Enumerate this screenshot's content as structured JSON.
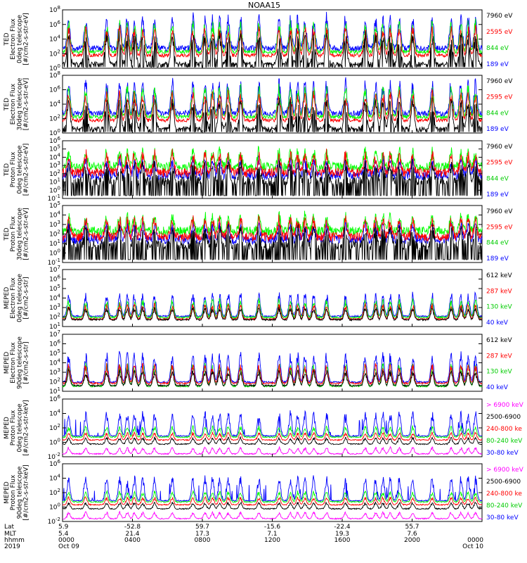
{
  "chart_data": {
    "type": "line",
    "title": "NOAA15",
    "panels": [
      {
        "ylabel": [
          "TED",
          "Electron Flux",
          "0deg telescope",
          "[#/cm2-s-str-eV]"
        ],
        "yticks": [
          "10^0",
          "10^2",
          "10^4",
          "10^6",
          "10^8"
        ],
        "ylim": [
          1,
          100000000
        ],
        "yscale": "log",
        "variant": "ted_e",
        "series": [
          {
            "name": "7960 eV",
            "color": "#000000"
          },
          {
            "name": "2595 eV",
            "color": "#ff0000"
          },
          {
            "name": "844 eV",
            "color": "#00ff00"
          },
          {
            "name": "189 eV",
            "color": "#0000ff"
          }
        ]
      },
      {
        "ylabel": [
          "TED",
          "Electron Flux",
          "30deg telescope",
          "[#/cm2-s-str-eV]"
        ],
        "yticks": [
          "10^0",
          "10^2",
          "10^4",
          "10^6",
          "10^8"
        ],
        "ylim": [
          1,
          100000000
        ],
        "yscale": "log",
        "variant": "ted_e",
        "series": [
          {
            "name": "7960 eV",
            "color": "#000000"
          },
          {
            "name": "2595 eV",
            "color": "#ff0000"
          },
          {
            "name": "844 eV",
            "color": "#00ff00"
          },
          {
            "name": "189 eV",
            "color": "#0000ff"
          }
        ]
      },
      {
        "ylabel": [
          "TED",
          "Proton Flux",
          "0deg telescope",
          "[#/cm2-s-str-eV]"
        ],
        "yticks": [
          "10^-1",
          "10^0",
          "10^1",
          "10^2",
          "10^3",
          "10^4",
          "10^5",
          "10^6"
        ],
        "ylim": [
          0.1,
          1000000
        ],
        "yscale": "log",
        "variant": "ted_p",
        "series": [
          {
            "name": "7960 eV",
            "color": "#000000"
          },
          {
            "name": "2595 eV",
            "color": "#ff0000"
          },
          {
            "name": "844 eV",
            "color": "#00ff00"
          },
          {
            "name": "189 eV",
            "color": "#0000ff"
          }
        ]
      },
      {
        "ylabel": [
          "TED",
          "Proton Flux",
          "30deg telescope",
          "[#/cm2-s-str-eV]"
        ],
        "yticks": [
          "10^-1",
          "10^0",
          "10^1",
          "10^2",
          "10^3",
          "10^4",
          "10^5"
        ],
        "ylim": [
          0.1,
          100000
        ],
        "yscale": "log",
        "variant": "ted_p",
        "series": [
          {
            "name": "7960 eV",
            "color": "#000000"
          },
          {
            "name": "2595 eV",
            "color": "#ff0000"
          },
          {
            "name": "844 eV",
            "color": "#00ff00"
          },
          {
            "name": "189 eV",
            "color": "#0000ff"
          }
        ]
      },
      {
        "ylabel": [
          "MEPED",
          "Electron Flux",
          "0deg telescope",
          "[#/cm2-s-str]"
        ],
        "yticks": [
          "10^1",
          "10^2",
          "10^3",
          "10^4",
          "10^5",
          "10^6",
          "10^7"
        ],
        "ylim": [
          10,
          10000000
        ],
        "yscale": "log",
        "variant": "mep_e",
        "series": [
          {
            "name": "612 keV",
            "color": "#000000"
          },
          {
            "name": "287 keV",
            "color": "#ff0000"
          },
          {
            "name": "130 keV",
            "color": "#00ff00"
          },
          {
            "name": "40 keV",
            "color": "#0000ff"
          }
        ]
      },
      {
        "ylabel": [
          "MEPED",
          "Electron Flux",
          "90deg telescope",
          "[#/cm2-s-str]"
        ],
        "yticks": [
          "10^1",
          "10^2",
          "10^3",
          "10^4",
          "10^5",
          "10^6",
          "10^7"
        ],
        "ylim": [
          10,
          10000000
        ],
        "yscale": "log",
        "variant": "mep_e90",
        "series": [
          {
            "name": "612 keV",
            "color": "#000000"
          },
          {
            "name": "287 keV",
            "color": "#ff0000"
          },
          {
            "name": "130 keV",
            "color": "#00ff00"
          },
          {
            "name": "40 keV",
            "color": "#0000ff"
          }
        ]
      },
      {
        "ylabel": [
          "MEPED",
          "Proton Flux",
          "0deg telescope",
          "[#/cm2-s-str-keV]"
        ],
        "yticks": [
          "10^-2",
          "10^0",
          "10^2",
          "10^4",
          "10^6"
        ],
        "ylim": [
          0.01,
          1000000
        ],
        "yscale": "log",
        "variant": "mep_p",
        "series": [
          {
            "name": "> 6900 keV",
            "color": "#ff00ff"
          },
          {
            "name": "2500-6900",
            "color": "#000000"
          },
          {
            "name": "240-800 ke",
            "color": "#ff0000"
          },
          {
            "name": "80-240 keV",
            "color": "#00ff00"
          },
          {
            "name": "30-80 keV",
            "color": "#0000ff"
          }
        ]
      },
      {
        "ylabel": [
          "MEPED",
          "Proton Flux",
          "90deg telescope",
          "[#/cm2-s-str-keV]"
        ],
        "yticks": [
          "10^-2",
          "10^0",
          "10^2",
          "10^4",
          "10^6"
        ],
        "ylim": [
          0.01,
          1000000
        ],
        "yscale": "log",
        "variant": "mep_p",
        "series": [
          {
            "name": "> 6900 keV",
            "color": "#ff00ff"
          },
          {
            "name": "2500-6900",
            "color": "#000000"
          },
          {
            "name": "240-800 ke",
            "color": "#ff0000"
          },
          {
            "name": "80-240 keV",
            "color": "#00ff00"
          },
          {
            "name": "30-80 keV",
            "color": "#0000ff"
          }
        ]
      }
    ],
    "xaxis": {
      "row_labels": [
        "Lat",
        "MLT",
        "hhmm",
        "2019"
      ],
      "ticks": [
        {
          "hour": 0,
          "values": [
            "5.9",
            "5.4",
            "0000",
            "Oct 09"
          ]
        },
        {
          "hour": 4,
          "values": [
            "-52.8",
            "21.4",
            "0400",
            ""
          ]
        },
        {
          "hour": 8,
          "values": [
            "59.7",
            "17.3",
            "0800",
            ""
          ]
        },
        {
          "hour": 12,
          "values": [
            "-15.6",
            "7.1",
            "1200",
            ""
          ]
        },
        {
          "hour": 16,
          "values": [
            "-22.4",
            "19.3",
            "1600",
            ""
          ]
        },
        {
          "hour": 20,
          "values": [
            "55.7",
            "7.6",
            "2000",
            ""
          ]
        },
        {
          "hour": 24,
          "values": [
            "",
            "",
            "0000",
            "Oct 10"
          ]
        }
      ],
      "xlim_hours": [
        0,
        24
      ]
    },
    "grid": false,
    "legend": "right of each panel"
  }
}
